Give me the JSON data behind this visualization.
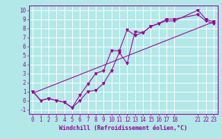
{
  "xlabel": "Windchill (Refroidissement éolien,°C)",
  "bg_color": "#b2e8e8",
  "grid_color": "#ffffff",
  "line_color": "#990099",
  "xlim": [
    -0.5,
    23.5
  ],
  "ylim": [
    -1.5,
    10.5
  ],
  "xticks": [
    0,
    1,
    2,
    3,
    4,
    5,
    6,
    7,
    8,
    9,
    10,
    11,
    12,
    13,
    14,
    15,
    16,
    17,
    18,
    21,
    22,
    23
  ],
  "yticks": [
    -1,
    0,
    1,
    2,
    3,
    4,
    5,
    6,
    7,
    8,
    9,
    10
  ],
  "line1_x": [
    0,
    1,
    2,
    3,
    4,
    5,
    6,
    7,
    8,
    9,
    10,
    11,
    12,
    13,
    14,
    15,
    16,
    17,
    18,
    21,
    22,
    23
  ],
  "line1_y": [
    1.0,
    0.0,
    0.2,
    0.0,
    -0.2,
    -0.8,
    0.0,
    1.0,
    1.1,
    1.9,
    3.3,
    5.3,
    4.1,
    7.6,
    7.5,
    8.2,
    8.5,
    8.8,
    8.8,
    10.0,
    9.0,
    8.7
  ],
  "line2_x": [
    0,
    1,
    2,
    3,
    4,
    5,
    6,
    7,
    8,
    9,
    10,
    11,
    12,
    13,
    14,
    15,
    16,
    17,
    18,
    21,
    22,
    23
  ],
  "line2_y": [
    1.0,
    0.0,
    0.2,
    0.0,
    -0.2,
    -0.8,
    0.6,
    1.8,
    3.0,
    3.3,
    5.5,
    5.5,
    7.8,
    7.2,
    7.5,
    8.2,
    8.5,
    9.0,
    9.0,
    9.5,
    8.8,
    8.5
  ],
  "line3_x": [
    0,
    23
  ],
  "line3_y": [
    0.8,
    8.7
  ],
  "xlabel_fontsize": 6,
  "tick_fontsize": 5.5
}
